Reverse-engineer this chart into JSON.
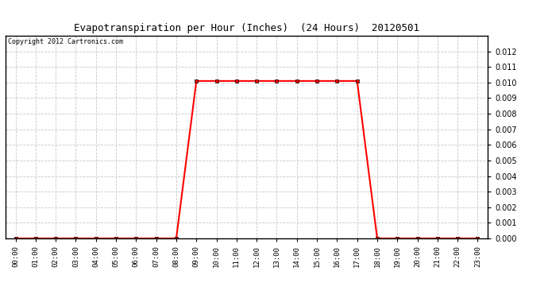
{
  "title": "Evapotranspiration per Hour (Inches)  (24 Hours)  20120501",
  "copyright_text": "Copyright 2012 Cartronics.com",
  "hours": [
    0,
    1,
    2,
    3,
    4,
    5,
    6,
    7,
    8,
    9,
    10,
    11,
    12,
    13,
    14,
    15,
    16,
    17,
    18,
    19,
    20,
    21,
    22,
    23
  ],
  "values": [
    0.0,
    0.0,
    0.0,
    0.0,
    0.0,
    0.0,
    0.0,
    0.0,
    0.0,
    0.0101,
    0.0101,
    0.0101,
    0.0101,
    0.0101,
    0.0101,
    0.0101,
    0.0101,
    0.0101,
    0.0,
    0.0,
    0.0,
    0.0,
    0.0,
    0.0
  ],
  "line_color": "#FF0000",
  "marker": "s",
  "marker_size": 3,
  "bg_color": "#FFFFFF",
  "plot_bg_color": "#FFFFFF",
  "grid_color": "#C8C8C8",
  "ylim": [
    0,
    0.013
  ],
  "yticks": [
    0.0,
    0.001,
    0.002,
    0.003,
    0.004,
    0.005,
    0.006,
    0.007,
    0.008,
    0.009,
    0.01,
    0.011,
    0.012
  ],
  "tick_labels": [
    "00:00",
    "01:00",
    "02:00",
    "03:00",
    "04:00",
    "05:00",
    "06:00",
    "07:00",
    "08:00",
    "09:00",
    "10:00",
    "11:00",
    "12:00",
    "13:00",
    "14:00",
    "15:00",
    "16:00",
    "17:00",
    "18:00",
    "19:00",
    "20:00",
    "21:00",
    "22:00",
    "23:00"
  ],
  "title_fontsize": 9,
  "copyright_fontsize": 6,
  "xtick_fontsize": 6.5,
  "ytick_fontsize": 7
}
